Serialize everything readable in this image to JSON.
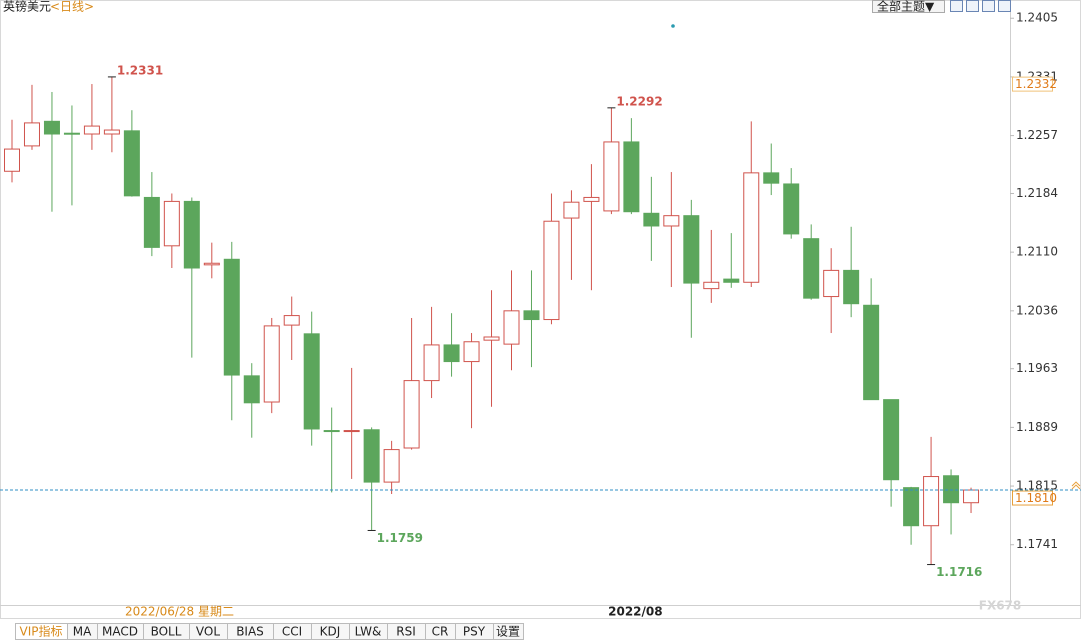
{
  "chart_data": {
    "type": "candlestick",
    "title": "英镑美元",
    "period": "<日线>",
    "crosshair_date": "2022/06/28 星期二",
    "categories": [
      null,
      null,
      null,
      null,
      null,
      null,
      null,
      null,
      null,
      null,
      null,
      null,
      null,
      null,
      null,
      null,
      null,
      null,
      null,
      null,
      null,
      null,
      null,
      null,
      null,
      null,
      null,
      null,
      null,
      null,
      null,
      "2022/08",
      null,
      null,
      null,
      null,
      null,
      null,
      null,
      null,
      null,
      null,
      null,
      null,
      null,
      null,
      null,
      null,
      null
    ],
    "open": [
      1.2212,
      1.2244,
      1.2275,
      1.226,
      1.2259,
      1.2259,
      1.2263,
      1.2179,
      1.2118,
      1.2174,
      1.2094,
      1.2101,
      1.1954,
      1.1921,
      1.2018,
      1.2007,
      1.1885,
      1.1884,
      1.1886,
      1.182,
      1.1863,
      1.1948,
      1.1993,
      1.1972,
      1.1999,
      1.1994,
      1.2036,
      1.2025,
      1.2153,
      1.2174,
      1.2162,
      1.2249,
      1.2159,
      1.2143,
      1.2156,
      1.2064,
      1.2076,
      1.2072,
      1.221,
      1.2196,
      1.2127,
      1.2054,
      1.2087,
      1.2043,
      1.1924,
      1.1813,
      1.1765,
      1.1828,
      1.1794
    ],
    "high": [
      1.2277,
      1.2321,
      1.2312,
      1.2295,
      1.2322,
      1.2331,
      1.2289,
      1.2211,
      1.2184,
      1.2179,
      1.2122,
      1.2123,
      1.197,
      1.2027,
      1.2054,
      1.2035,
      1.1914,
      1.1964,
      1.1889,
      1.1872,
      1.2027,
      1.2041,
      1.2033,
      1.2008,
      1.2062,
      1.2087,
      1.2087,
      1.2184,
      1.2188,
      1.2221,
      1.2292,
      1.2279,
      1.2205,
      1.2211,
      1.2176,
      1.2138,
      1.2134,
      1.2275,
      1.2247,
      1.2216,
      1.2145,
      1.2115,
      1.2142,
      1.2077,
      1.1924,
      1.1814,
      1.1877,
      1.1836,
      1.1813
    ],
    "low": [
      1.2198,
      1.2239,
      1.2161,
      1.2169,
      1.2239,
      1.2236,
      1.218,
      1.2105,
      1.209,
      1.1977,
      1.2077,
      1.1898,
      1.1876,
      1.1907,
      1.1974,
      1.1866,
      1.1807,
      1.1824,
      1.1759,
      1.1805,
      1.1861,
      1.1926,
      1.1953,
      1.1888,
      1.1915,
      1.1961,
      1.1965,
      1.2019,
      1.2075,
      1.2062,
      1.2158,
      1.2158,
      1.2099,
      1.2066,
      1.2002,
      1.2046,
      1.2065,
      1.2066,
      1.2182,
      1.2127,
      1.205,
      1.2008,
      1.2028,
      1.1924,
      1.1789,
      1.1741,
      1.1716,
      1.1754,
      1.1781
    ],
    "close": [
      1.224,
      1.2273,
      1.2259,
      1.2259,
      1.2269,
      1.2264,
      1.2181,
      1.2116,
      1.2174,
      1.209,
      1.2096,
      1.1955,
      1.192,
      1.2017,
      1.203,
      1.1887,
      1.1884,
      1.1885,
      1.182,
      1.1861,
      1.1948,
      1.1993,
      1.1972,
      1.1997,
      1.2003,
      1.2036,
      1.2025,
      1.2149,
      1.2173,
      1.2179,
      1.2249,
      1.2161,
      1.2143,
      1.2156,
      1.2071,
      1.2072,
      1.2072,
      1.221,
      1.2197,
      1.2133,
      1.2052,
      1.2087,
      1.2045,
      1.1924,
      1.1823,
      1.1765,
      1.1827,
      1.1794,
      1.181
    ],
    "up_color": "#d0534c",
    "down_color": "#5ca65c",
    "annotations": [
      1.2331,
      1.2292,
      1.1759,
      1.1716
    ],
    "last_price": {
      "value": 1.181,
      "label": "1.1810"
    },
    "crosshair_price": 1.2332,
    "ylim": [
      1.1665,
      1.2428
    ],
    "yticks": [
      1.2405,
      1.2331,
      1.2257,
      1.2184,
      {
        "value": 1.211,
        "label": "1.2110"
      },
      1.2036,
      1.1963,
      1.1889,
      1.1815,
      1.1741
    ],
    "grid": false,
    "watermark": "FX678"
  },
  "theme_button": "全部主题▼",
  "toolbar": [
    "VIP指标",
    "MA",
    "MACD",
    "BOLL",
    "VOL",
    "BIAS",
    "CCI",
    "KDJ",
    "LW&",
    "RSI",
    "CR",
    "PSY",
    "设置"
  ]
}
